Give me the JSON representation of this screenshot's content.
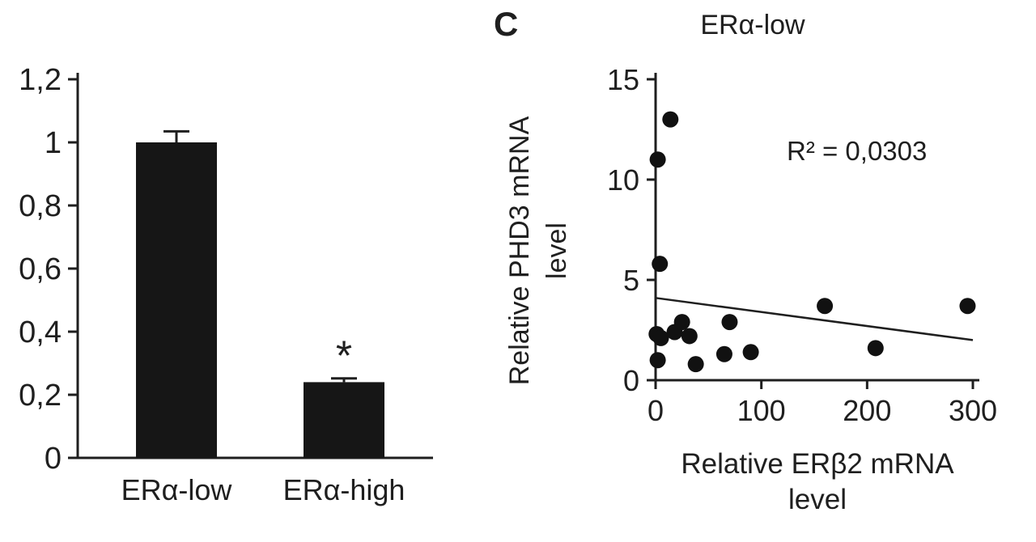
{
  "figure": {
    "background": "#ffffff",
    "ink_color": "#1f1f1f"
  },
  "chart_data": [
    {
      "type": "bar",
      "name": "relative-phd3-bar-chart",
      "categories": [
        "ERα-low",
        "ERα-high"
      ],
      "values": [
        1.0,
        0.24
      ],
      "errors": [
        0.035,
        0.012
      ],
      "significance": [
        "",
        "*"
      ],
      "ylim": [
        0,
        1.2
      ],
      "yticks": [
        0,
        0.2,
        0.4,
        0.6,
        0.8,
        1.0,
        1.2
      ],
      "ytick_labels": [
        "0",
        "0,2",
        "0,4",
        "0,6",
        "0,8",
        "1",
        "1,2"
      ],
      "bar_color": "#161616",
      "grid": false,
      "legend": "none"
    },
    {
      "type": "scatter",
      "name": "phd3-vs-erb2-scatter",
      "panel_label": "C",
      "title": "ERα-low",
      "xlabel_lines": [
        "Relative ERβ2 mRNA",
        "level"
      ],
      "ylabel_lines": [
        "Relative PHD3 mRNA",
        "level"
      ],
      "annotation": "R² = 0,0303",
      "xlim": [
        0,
        300
      ],
      "ylim": [
        0,
        15
      ],
      "xticks": [
        0,
        100,
        200,
        300
      ],
      "xtick_labels": [
        "0",
        "100",
        "200",
        "300"
      ],
      "yticks": [
        0,
        5,
        10,
        15
      ],
      "ytick_labels": [
        "0",
        "5",
        "10",
        "15"
      ],
      "points": [
        {
          "x": 2,
          "y": 11.0
        },
        {
          "x": 14,
          "y": 13.0
        },
        {
          "x": 4,
          "y": 5.8
        },
        {
          "x": 1,
          "y": 2.3
        },
        {
          "x": 5,
          "y": 2.1
        },
        {
          "x": 2,
          "y": 1.0
        },
        {
          "x": 18,
          "y": 2.4
        },
        {
          "x": 25,
          "y": 2.9
        },
        {
          "x": 32,
          "y": 2.2
        },
        {
          "x": 38,
          "y": 0.8
        },
        {
          "x": 65,
          "y": 1.3
        },
        {
          "x": 70,
          "y": 2.9
        },
        {
          "x": 90,
          "y": 1.4
        },
        {
          "x": 160,
          "y": 3.7
        },
        {
          "x": 208,
          "y": 1.6
        },
        {
          "x": 295,
          "y": 3.7
        }
      ],
      "trendline": {
        "x_start": 0,
        "y_start": 4.1,
        "x_end": 300,
        "y_end": 2.0
      },
      "point_color": "#111111",
      "grid": false,
      "legend": "none"
    }
  ]
}
